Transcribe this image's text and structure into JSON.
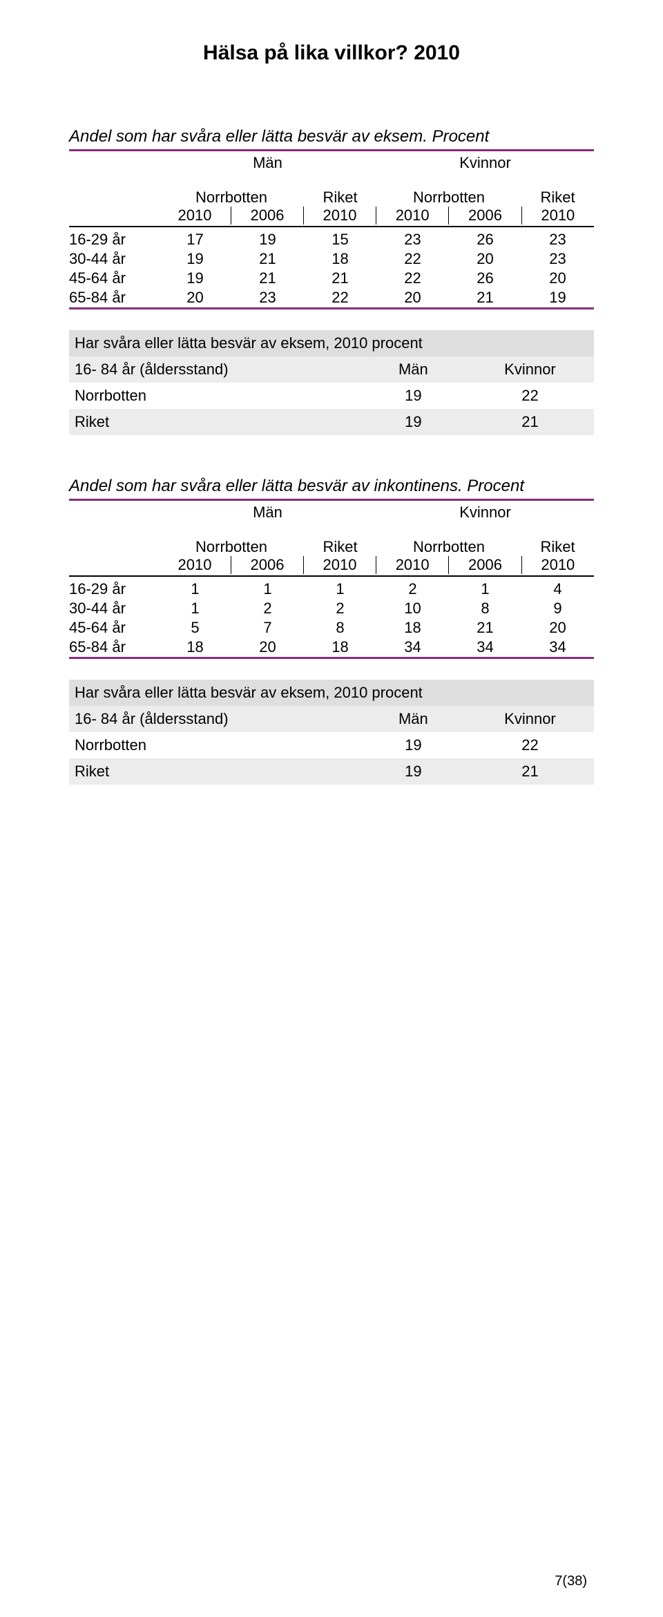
{
  "doc_title": "Hälsa på lika villkor? 2010",
  "title_rule_color": "#8a2b7a",
  "bottom_rule_color": "#8a2b7a",
  "grey_bg": "#dedede",
  "grey_alt": "#ececec",
  "group_labels": {
    "man": "Män",
    "kvinnor": "Kvinnor"
  },
  "subhead1": {
    "nb": "Norrbotten",
    "riket": "Riket"
  },
  "subhead2": {
    "y2010": "2010",
    "y2006": "2006"
  },
  "section1": {
    "title": "Andel som har svåra eller lätta besvär av eksem. Procent",
    "rows": [
      {
        "label": "16-29 år",
        "vals": [
          "17",
          "19",
          "15",
          "23",
          "26",
          "23"
        ]
      },
      {
        "label": "30-44 år",
        "vals": [
          "19",
          "21",
          "18",
          "22",
          "20",
          "23"
        ]
      },
      {
        "label": "45-64 år",
        "vals": [
          "19",
          "21",
          "21",
          "22",
          "26",
          "20"
        ]
      },
      {
        "label": "65-84 år",
        "vals": [
          "20",
          "23",
          "22",
          "20",
          "21",
          "19"
        ]
      }
    ],
    "summary": {
      "title": "Har svåra eller lätta besvär av eksem, 2010 procent",
      "head_stub": "16- 84 år (åldersstand)",
      "head_cols": [
        "Män",
        "Kvinnor"
      ],
      "rows": [
        {
          "label": "Norrbotten",
          "vals": [
            "19",
            "22"
          ]
        },
        {
          "label": "Riket",
          "vals": [
            "19",
            "21"
          ]
        }
      ]
    }
  },
  "section2": {
    "title": "Andel som har svåra eller lätta besvär av inkontinens. Procent",
    "rows": [
      {
        "label": "16-29 år",
        "vals": [
          "1",
          "1",
          "1",
          "2",
          "1",
          "4"
        ]
      },
      {
        "label": "30-44 år",
        "vals": [
          "1",
          "2",
          "2",
          "10",
          "8",
          "9"
        ]
      },
      {
        "label": "45-64 år",
        "vals": [
          "5",
          "7",
          "8",
          "18",
          "21",
          "20"
        ]
      },
      {
        "label": "65-84 år",
        "vals": [
          "18",
          "20",
          "18",
          "34",
          "34",
          "34"
        ]
      }
    ],
    "summary": {
      "title": "Har svåra eller lätta besvär av eksem, 2010 procent",
      "head_stub": "16- 84 år (åldersstand)",
      "head_cols": [
        "Män",
        "Kvinnor"
      ],
      "rows": [
        {
          "label": "Norrbotten",
          "vals": [
            "19",
            "22"
          ]
        },
        {
          "label": "Riket",
          "vals": [
            "19",
            "21"
          ]
        }
      ]
    }
  },
  "page_num": "7(38)"
}
